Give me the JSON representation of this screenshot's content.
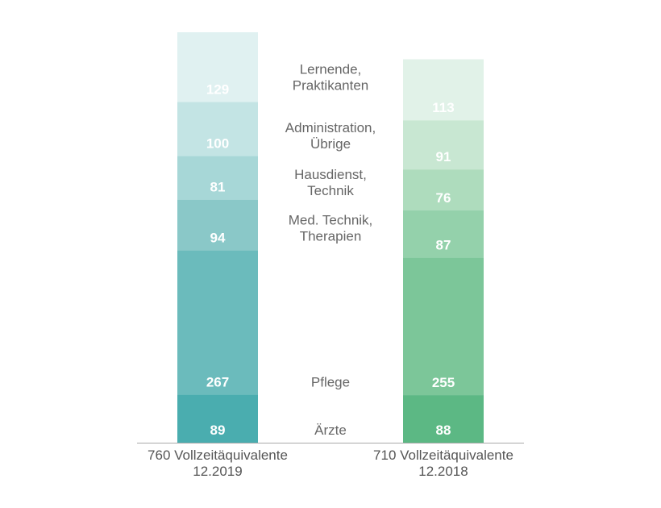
{
  "chart_data": {
    "type": "bar",
    "stacked": true,
    "categories": [
      "Ärzte",
      "Pflege",
      "Med. Technik, Therapien",
      "Hausdienst, Technik",
      "Administration, Übrige",
      "Lernende, Praktikanten"
    ],
    "category_lines": [
      [
        "Ärzte"
      ],
      [
        "Pflege"
      ],
      [
        "Med. Technik,",
        "Therapien"
      ],
      [
        "Hausdienst,",
        "Technik"
      ],
      [
        "Administration,",
        "Übrige"
      ],
      [
        "Lernende,",
        "Praktikanten"
      ]
    ],
    "series": [
      {
        "name": "12.2019",
        "label_lines": [
          "760 Vollzeitäquivalente",
          "12.2019"
        ],
        "total": 760,
        "values": [
          89,
          267,
          94,
          81,
          100,
          129
        ],
        "colors": [
          "#4aadaf",
          "#6bbbbc",
          "#8ac8c8",
          "#a7d7d7",
          "#c3e4e4",
          "#e0f1f1"
        ]
      },
      {
        "name": "12.2018",
        "label_lines": [
          "710 Vollzeitäquivalente",
          "12.2018"
        ],
        "total": 710,
        "values": [
          88,
          255,
          87,
          76,
          91,
          113
        ],
        "colors": [
          "#5cb884",
          "#7cc699",
          "#94d1ab",
          "#aedcbd",
          "#c8e7d2",
          "#e1f2e8"
        ]
      }
    ],
    "ylim": [
      0,
      760
    ],
    "axis_color": "#aaaaaa",
    "legend": "center"
  }
}
